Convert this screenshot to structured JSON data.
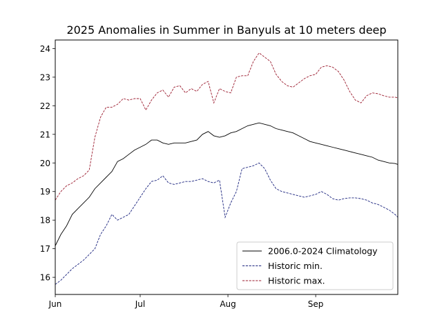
{
  "chart_data": {
    "type": "line",
    "title": "2025 Anomalies in Summer in Banyuls at 10 meters deep",
    "xlabel": "",
    "ylabel": "",
    "x_unit": "date",
    "xlim": [
      "2025-06-01",
      "2025-09-30"
    ],
    "ylim": [
      15.4,
      24.3
    ],
    "x_tick_labels": [
      {
        "date": "2025-06-01",
        "label": "Jun"
      },
      {
        "date": "2025-07-01",
        "label": "Jul"
      },
      {
        "date": "2025-08-01",
        "label": "Aug"
      },
      {
        "date": "2025-09-01",
        "label": "Sep"
      }
    ],
    "y_ticks": [
      16,
      17,
      18,
      19,
      20,
      21,
      22,
      23,
      24
    ],
    "grid": false,
    "legend_position": "lower-right",
    "x": [
      "2025-06-01",
      "2025-06-03",
      "2025-06-05",
      "2025-06-07",
      "2025-06-09",
      "2025-06-11",
      "2025-06-13",
      "2025-06-15",
      "2025-06-17",
      "2025-06-19",
      "2025-06-21",
      "2025-06-23",
      "2025-06-25",
      "2025-06-27",
      "2025-06-29",
      "2025-07-01",
      "2025-07-03",
      "2025-07-05",
      "2025-07-07",
      "2025-07-09",
      "2025-07-11",
      "2025-07-13",
      "2025-07-15",
      "2025-07-17",
      "2025-07-19",
      "2025-07-21",
      "2025-07-23",
      "2025-07-25",
      "2025-07-27",
      "2025-07-29",
      "2025-07-31",
      "2025-08-02",
      "2025-08-04",
      "2025-08-06",
      "2025-08-08",
      "2025-08-10",
      "2025-08-12",
      "2025-08-14",
      "2025-08-16",
      "2025-08-18",
      "2025-08-20",
      "2025-08-22",
      "2025-08-24",
      "2025-08-26",
      "2025-08-28",
      "2025-08-30",
      "2025-09-01",
      "2025-09-03",
      "2025-09-05",
      "2025-09-07",
      "2025-09-09",
      "2025-09-11",
      "2025-09-13",
      "2025-09-15",
      "2025-09-17",
      "2025-09-19",
      "2025-09-21",
      "2025-09-23",
      "2025-09-25",
      "2025-09-27",
      "2025-09-29",
      "2025-09-30"
    ],
    "series": [
      {
        "name": "2006.0-2024 Climatology",
        "color": "#000000",
        "dash": "solid",
        "values": [
          17.1,
          17.5,
          17.8,
          18.2,
          18.4,
          18.6,
          18.8,
          19.1,
          19.3,
          19.5,
          19.7,
          20.05,
          20.15,
          20.3,
          20.45,
          20.55,
          20.65,
          20.8,
          20.8,
          20.7,
          20.65,
          20.7,
          20.7,
          20.7,
          20.75,
          20.8,
          21.0,
          21.1,
          20.95,
          20.9,
          20.95,
          21.05,
          21.1,
          21.2,
          21.3,
          21.35,
          21.4,
          21.35,
          21.3,
          21.2,
          21.15,
          21.1,
          21.05,
          20.95,
          20.85,
          20.75,
          20.7,
          20.65,
          20.6,
          20.55,
          20.5,
          20.45,
          20.4,
          20.35,
          20.3,
          20.25,
          20.2,
          20.1,
          20.05,
          20.0,
          19.98,
          19.95
        ]
      },
      {
        "name": "Historic min.",
        "color": "#1a237e",
        "dash": "dashed",
        "values": [
          15.75,
          15.9,
          16.1,
          16.3,
          16.45,
          16.6,
          16.8,
          17.0,
          17.5,
          17.8,
          18.2,
          18.0,
          18.1,
          18.2,
          18.5,
          18.8,
          19.1,
          19.35,
          19.4,
          19.55,
          19.3,
          19.25,
          19.3,
          19.35,
          19.35,
          19.4,
          19.45,
          19.35,
          19.3,
          19.4,
          18.1,
          18.6,
          19.0,
          19.8,
          19.85,
          19.9,
          20.0,
          19.8,
          19.4,
          19.1,
          19.0,
          18.95,
          18.9,
          18.85,
          18.8,
          18.85,
          18.9,
          19.0,
          18.9,
          18.75,
          18.7,
          18.75,
          18.78,
          18.78,
          18.75,
          18.7,
          18.6,
          18.55,
          18.45,
          18.35,
          18.2,
          18.1
        ]
      },
      {
        "name": "Historic max.",
        "color": "#9b1b2e",
        "dash": "dashed",
        "values": [
          18.7,
          19.0,
          19.2,
          19.3,
          19.45,
          19.55,
          19.75,
          20.9,
          21.6,
          21.95,
          21.95,
          22.05,
          22.25,
          22.2,
          22.25,
          22.25,
          21.85,
          22.2,
          22.45,
          22.55,
          22.3,
          22.65,
          22.7,
          22.45,
          22.6,
          22.5,
          22.75,
          22.85,
          22.1,
          22.6,
          22.5,
          22.45,
          23.0,
          23.05,
          23.05,
          23.55,
          23.85,
          23.7,
          23.55,
          23.1,
          22.85,
          22.7,
          22.65,
          22.8,
          22.95,
          23.05,
          23.1,
          23.35,
          23.4,
          23.35,
          23.2,
          22.9,
          22.5,
          22.2,
          22.1,
          22.35,
          22.45,
          22.42,
          22.35,
          22.3,
          22.3,
          22.28
        ]
      }
    ]
  }
}
